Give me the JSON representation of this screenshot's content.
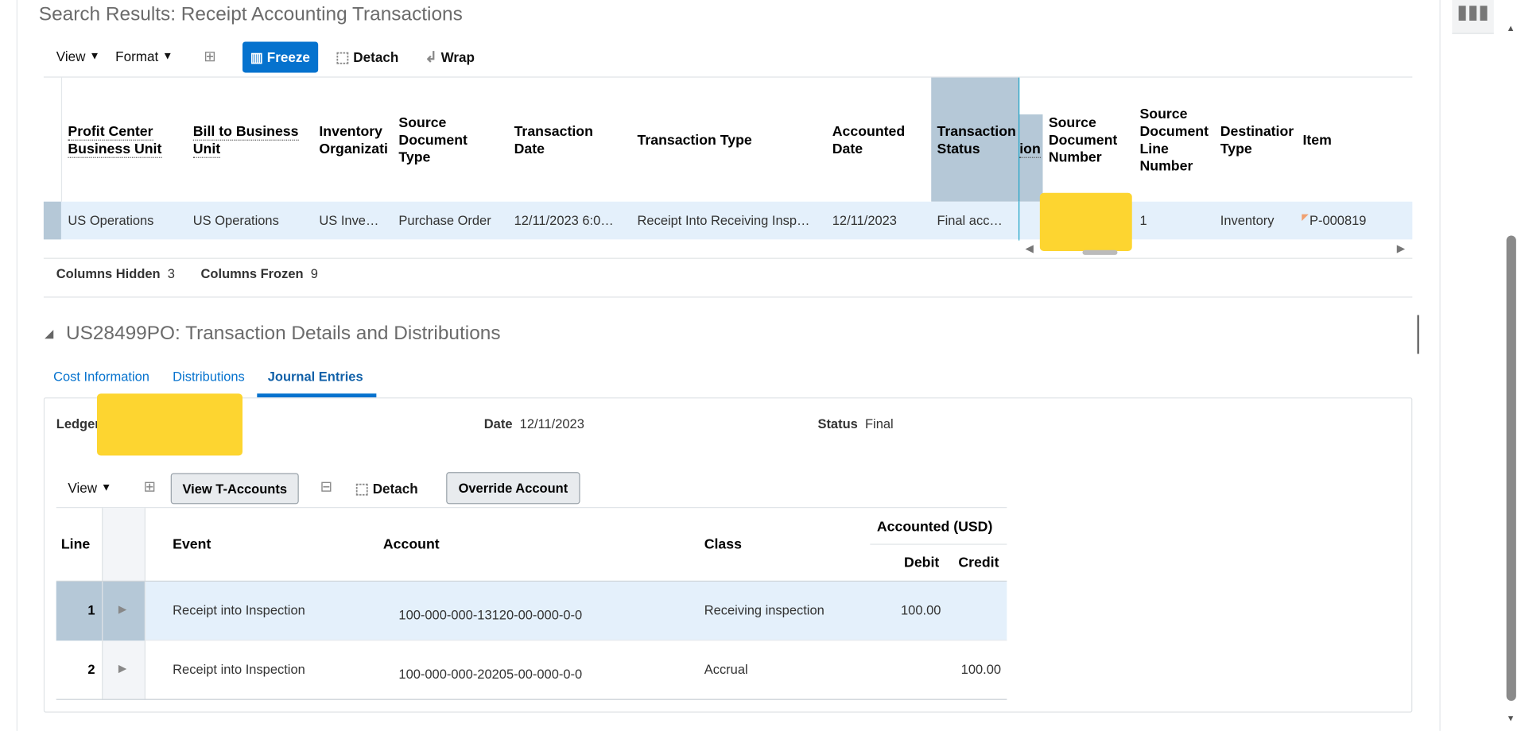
{
  "title": "Search Results: Receipt Accounting Transactions",
  "toolbar": {
    "view": "View",
    "format": "Format",
    "freeze": "Freeze",
    "detach": "Detach",
    "wrap": "Wrap"
  },
  "results": {
    "headers": {
      "profit_center": [
        "Profit Center",
        "Business Unit"
      ],
      "bill_to": [
        "Bill to Business",
        "Unit"
      ],
      "inventory_org": [
        "Inventory",
        "Organizati"
      ],
      "source_doc_type": [
        "Source",
        "Document",
        "Type"
      ],
      "transaction_date": [
        "Transaction",
        "Date"
      ],
      "transaction_type": "Transaction Type",
      "accounted_date": [
        "Accounted",
        "Date"
      ],
      "transaction_status": [
        "Transaction",
        "Status"
      ],
      "hidden_partial": "ion",
      "source_doc_number": [
        "Source",
        "Document",
        "Number"
      ],
      "source_doc_line": [
        "Source",
        "Document",
        "Line",
        "Number"
      ],
      "destination_type": [
        "Destinatior",
        "Type"
      ],
      "item": "Item"
    },
    "row": {
      "profit_center": "US Operations",
      "bill_to": "US Operations",
      "inventory_org": "US Inve…",
      "source_doc_type": "Purchase Order",
      "transaction_date": "12/11/2023 6:0…",
      "transaction_type": "Receipt Into Receiving Insp…",
      "accounted_date": "12/11/2023",
      "transaction_status": "Final acc…",
      "source_doc_line": "1",
      "destination_type": "Inventory",
      "item": "P-000819"
    }
  },
  "footer": {
    "hidden_label": "Columns Hidden",
    "hidden": "3",
    "frozen_label": "Columns Frozen",
    "frozen": "9"
  },
  "details": {
    "title": "US28499PO: Transaction Details and Distributions",
    "tabs": [
      "Cost Information",
      "Distributions",
      "Journal Entries"
    ],
    "ledger_label": "Ledger",
    "date_label": "Date",
    "date": "12/11/2023",
    "status_label": "Status",
    "status": "Final",
    "toolbar": {
      "view": "View",
      "view_t_accounts": "View T-Accounts",
      "detach": "Detach",
      "override": "Override Account"
    },
    "headers": {
      "line": "Line",
      "event": "Event",
      "account": "Account",
      "class": "Class",
      "accounted": "Accounted (USD)",
      "debit": "Debit",
      "credit": "Credit"
    },
    "rows": [
      {
        "line": "1",
        "event": "Receipt into Inspection",
        "account": "100-000-000-13120-00-000-0-0",
        "class": "Receiving inspection",
        "debit": "100.00",
        "credit": ""
      },
      {
        "line": "2",
        "event": "Receipt into Inspection",
        "account": "100-000-000-20205-00-000-0-0",
        "class": "Accrual",
        "debit": "",
        "credit": "100.00"
      }
    ]
  }
}
